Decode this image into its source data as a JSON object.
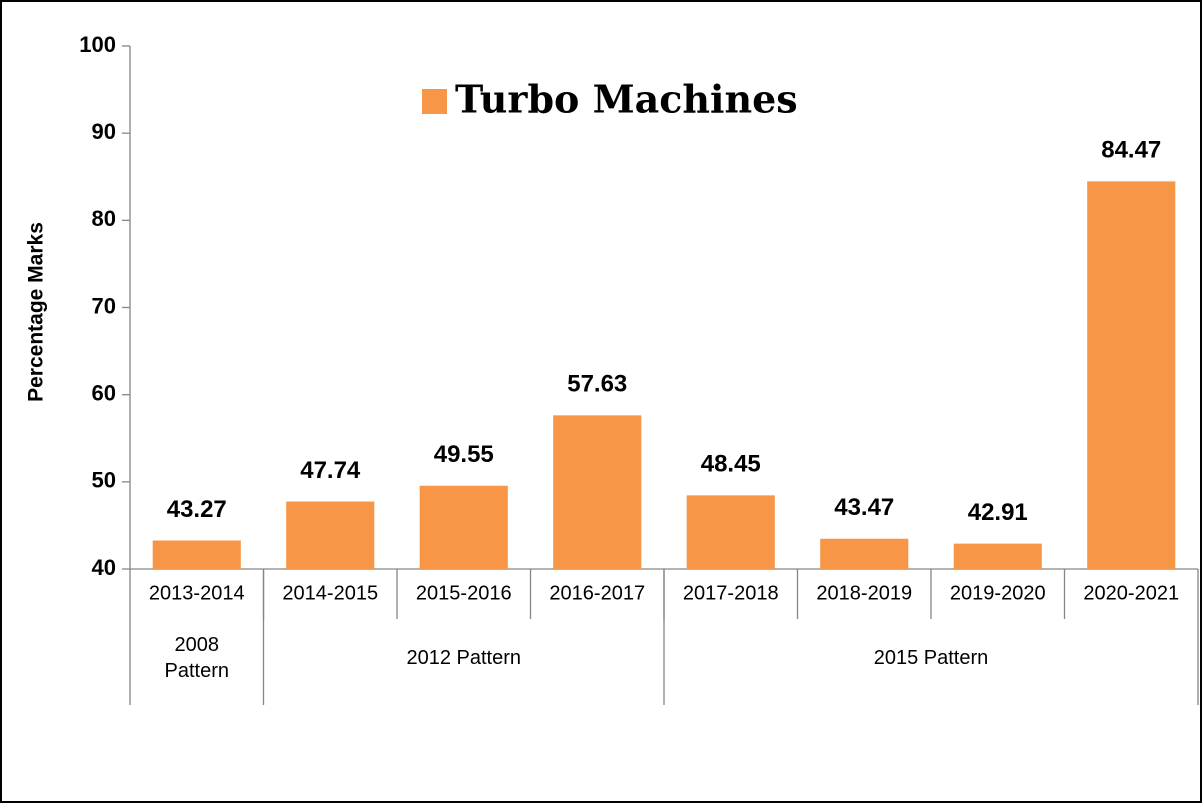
{
  "chart_data": {
    "type": "bar",
    "legend": "Turbo Machines",
    "y_label": "Percentage Marks",
    "categories": [
      "2013-2014",
      "2014-2015",
      "2015-2016",
      "2016-2017",
      "2017-2018",
      "2018-2019",
      "2019-2020",
      "2020-2021"
    ],
    "values": [
      43.27,
      47.74,
      49.55,
      57.63,
      48.45,
      43.47,
      42.91,
      84.47
    ],
    "groups": [
      {
        "label": "2008 Pattern",
        "count": 1
      },
      {
        "label": "2012 Pattern",
        "count": 3
      },
      {
        "label": "2015 Pattern",
        "count": 4
      }
    ],
    "color": "#f79646",
    "ylim": [
      40,
      100
    ],
    "yticks": [
      40,
      50,
      60,
      70,
      80,
      90,
      100
    ]
  }
}
